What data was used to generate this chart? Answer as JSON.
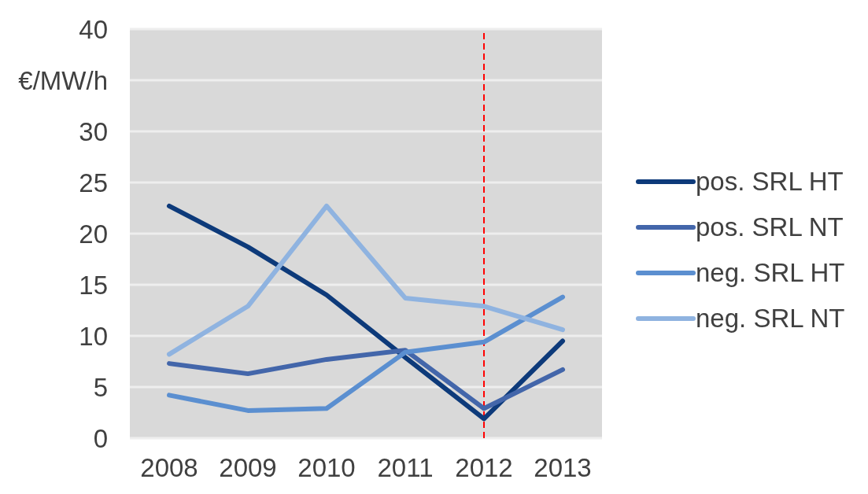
{
  "chart_data": {
    "type": "line",
    "categories": [
      "2008",
      "2009",
      "2010",
      "2011",
      "2012",
      "2013"
    ],
    "series": [
      {
        "name": "pos. SRL HT",
        "color": "#0d3a7a",
        "values": [
          22.7,
          18.7,
          14.0,
          7.9,
          1.9,
          9.5
        ]
      },
      {
        "name": "pos. SRL NT",
        "color": "#4366aa",
        "values": [
          7.3,
          6.3,
          7.7,
          8.6,
          2.9,
          6.7
        ]
      },
      {
        "name": "neg. SRL HT",
        "color": "#5b8fd0",
        "values": [
          4.2,
          2.7,
          2.9,
          8.4,
          9.4,
          13.8
        ]
      },
      {
        "name": "neg. SRL NT",
        "color": "#8fb3e0",
        "values": [
          8.2,
          12.9,
          22.7,
          13.7,
          12.9,
          10.6
        ]
      }
    ],
    "ylim": [
      0,
      40
    ],
    "yticks": [
      0,
      5,
      10,
      15,
      20,
      25,
      30,
      {
        "value": 35,
        "label": "€/MW/h"
      },
      40
    ],
    "grid": "y",
    "legend": "right",
    "marker": "none",
    "line_style": "solid",
    "ref_lines": [
      {
        "axis": "x",
        "value": "2012",
        "color": "#ff0000",
        "line_style": "dashed"
      }
    ]
  }
}
